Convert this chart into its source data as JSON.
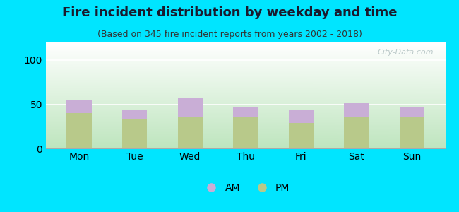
{
  "title": "Fire incident distribution by weekday and time",
  "subtitle": "(Based on 345 fire incident reports from years 2002 - 2018)",
  "categories": [
    "Mon",
    "Tue",
    "Wed",
    "Thu",
    "Fri",
    "Sat",
    "Sun"
  ],
  "pm_values": [
    40,
    34,
    36,
    35,
    29,
    35,
    36
  ],
  "am_values": [
    15,
    9,
    21,
    12,
    15,
    16,
    11
  ],
  "bar_color_pm": "#b8c98a",
  "bar_color_am": "#c9aed6",
  "background_color": "#00e5ff",
  "grad_top_color": "#f0f5e8",
  "grad_bottom_color": "#c8e8c8",
  "ylim": [
    0,
    120
  ],
  "yticks": [
    0,
    50,
    100
  ],
  "legend_am": "AM",
  "legend_pm": "PM",
  "title_fontsize": 13,
  "subtitle_fontsize": 9,
  "axis_fontsize": 10,
  "title_color": "#1a1a2e",
  "subtitle_color": "#333333",
  "watermark_text": "City-Data.com",
  "watermark_color": "#b0c0c0"
}
